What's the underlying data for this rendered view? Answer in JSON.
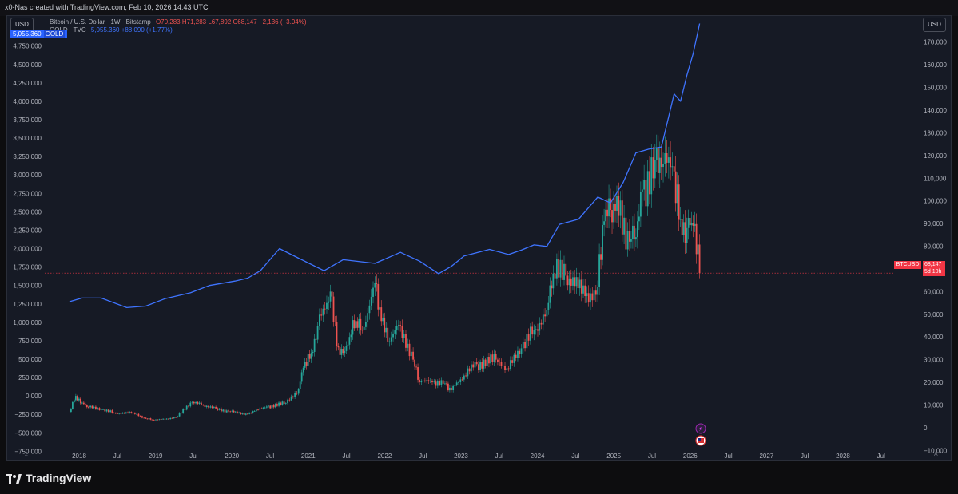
{
  "header": {
    "text": "x0-Nas created with TradingView.com, Feb 10, 2026 14:43 UTC"
  },
  "toolbar": {
    "left_unit": "USD",
    "right_unit": "USD"
  },
  "legend": {
    "btc_symbol": "Bitcoin / U.S. Dollar · 1W · Bitstamp",
    "btc_ohlc": "O70,283 H71,283 L67,892 C68,147 −2,136 (−3.04%)",
    "gold_symbol": "GOLD · TVC",
    "gold_value": "5,055.360 +88.090 (+1.77%)"
  },
  "price_tags": {
    "gold_value": "5,055.360",
    "gold_name": "GOLD",
    "btc_name": "BTCUSD",
    "btc_value": "68,147",
    "btc_countdown": "5d 10h"
  },
  "corners": {
    "bottom_left": "2",
    "bottom_right": "A"
  },
  "footer": {
    "brand": "TradingView"
  },
  "colors": {
    "gold_line": "#3f74ff",
    "up": "#26a69a",
    "down": "#ef5350",
    "background": "#161a25",
    "btc_tag": "#f23645"
  },
  "chart_data": {
    "type": "line",
    "x_tick_labels": [
      "2018",
      "Jul",
      "2019",
      "Jul",
      "2020",
      "Jul",
      "2021",
      "Jul",
      "2022",
      "Jul",
      "2023",
      "Jul",
      "2024",
      "Jul",
      "2025",
      "Jul",
      "2026",
      "Jul",
      "2027",
      "Jul",
      "2028",
      "Jul"
    ],
    "left_axis": {
      "series": "GOLD",
      "ylim": [
        -800,
        5050
      ],
      "tick_labels": [
        "4,750.000",
        "4,500.000",
        "4,250.000",
        "4,000.000",
        "3,750.000",
        "3,500.000",
        "3,250.000",
        "3,000.000",
        "2,750.000",
        "2,500.000",
        "2,250.000",
        "2,000.000",
        "1,750.000",
        "1,500.000",
        "1,250.000",
        "1,000.000",
        "750.000",
        "500.000",
        "250.000",
        "0.000",
        "−250.000",
        "−500.000",
        "−750.000"
      ]
    },
    "right_axis": {
      "series": "BTCUSD",
      "ylim": [
        -12000,
        178000
      ],
      "tick_labels": [
        "170,000",
        "160,000",
        "150,000",
        "140,000",
        "130,000",
        "120,000",
        "110,000",
        "100,000",
        "90,000",
        "80,000",
        "70,000",
        "60,000",
        "50,000",
        "40,000",
        "30,000",
        "20,000",
        "10,000",
        "0",
        "−10,000"
      ]
    },
    "series": [
      {
        "name": "GOLD · TVC",
        "color": "#3f74ff",
        "x": [
          "2017-11",
          "2018-01",
          "2018-04",
          "2018-08",
          "2018-11",
          "2019-02",
          "2019-06",
          "2019-09",
          "2020-01",
          "2020-03",
          "2020-05",
          "2020-08",
          "2020-11",
          "2021-03",
          "2021-06",
          "2021-11",
          "2022-03",
          "2022-06",
          "2022-09",
          "2022-11",
          "2023-01",
          "2023-05",
          "2023-08",
          "2023-10",
          "2023-12",
          "2024-02",
          "2024-04",
          "2024-07",
          "2024-10",
          "2024-12",
          "2025-02",
          "2025-04",
          "2025-06",
          "2025-08",
          "2025-10",
          "2025-11",
          "2025-12",
          "2026-01",
          "2026-02"
        ],
        "y": [
          1280,
          1330,
          1330,
          1200,
          1220,
          1320,
          1400,
          1500,
          1560,
          1600,
          1700,
          2000,
          1870,
          1700,
          1850,
          1800,
          1950,
          1830,
          1660,
          1760,
          1900,
          1990,
          1920,
          1980,
          2050,
          2030,
          2330,
          2400,
          2700,
          2620,
          2900,
          3300,
          3350,
          3380,
          4100,
          4000,
          4350,
          4650,
          5055
        ]
      },
      {
        "name": "BTCUSD",
        "type": "candlestick",
        "x": [
          "2017-11",
          "2017-12",
          "2018-01",
          "2018-02",
          "2018-04",
          "2018-06",
          "2018-09",
          "2018-11",
          "2018-12",
          "2019-02",
          "2019-04",
          "2019-06",
          "2019-08",
          "2019-10",
          "2019-12",
          "2020-03",
          "2020-06",
          "2020-09",
          "2020-11",
          "2020-12",
          "2021-01",
          "2021-02",
          "2021-04",
          "2021-05",
          "2021-06",
          "2021-07",
          "2021-08",
          "2021-09",
          "2021-11",
          "2021-12",
          "2022-01",
          "2022-03",
          "2022-05",
          "2022-06",
          "2022-08",
          "2022-10",
          "2022-11",
          "2023-01",
          "2023-03",
          "2023-06",
          "2023-08",
          "2023-10",
          "2023-12",
          "2024-02",
          "2024-03",
          "2024-05",
          "2024-08",
          "2024-10",
          "2024-11",
          "2024-12",
          "2025-01",
          "2025-03",
          "2025-04",
          "2025-05",
          "2025-07",
          "2025-08",
          "2025-10",
          "2025-11",
          "2025-12",
          "2026-01",
          "2026-02"
        ],
        "y": [
          7000,
          14000,
          11000,
          9000,
          8000,
          6500,
          6500,
          4000,
          3500,
          3700,
          5000,
          11000,
          10000,
          8500,
          7200,
          6000,
          9300,
          10800,
          17000,
          29000,
          33000,
          45000,
          60000,
          36000,
          33000,
          40000,
          47000,
          43000,
          64000,
          47000,
          38000,
          45000,
          30000,
          20000,
          20000,
          19500,
          16500,
          23000,
          28000,
          30000,
          26000,
          35000,
          43000,
          52000,
          68000,
          67000,
          58000,
          62000,
          91000,
          96000,
          102000,
          82000,
          84000,
          105000,
          118000,
          115000,
          113000,
          92000,
          88000,
          89000,
          68147
        ]
      }
    ],
    "grid": false
  }
}
